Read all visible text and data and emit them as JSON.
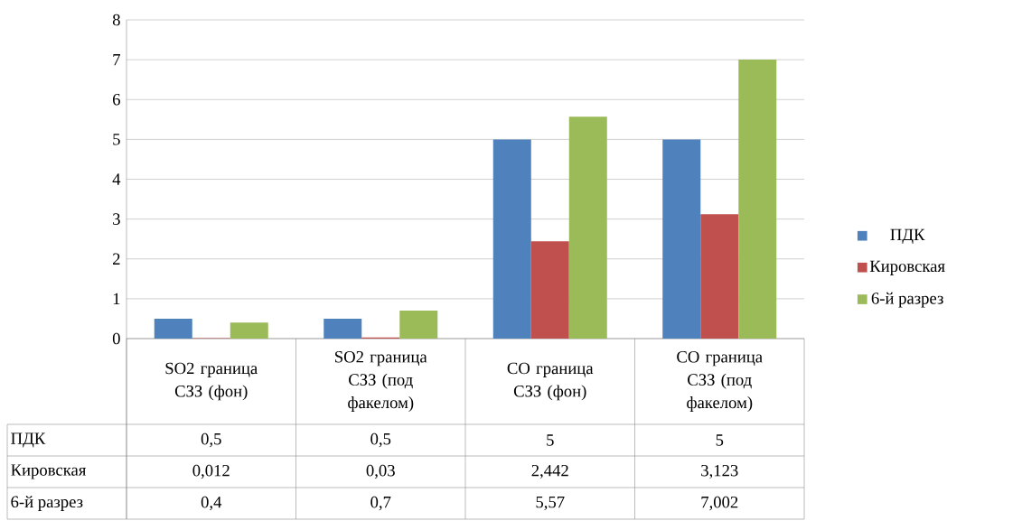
{
  "chart_data": {
    "type": "bar",
    "categories": [
      "SO2 граница СЗЗ (фон)",
      "SO2 граница СЗЗ (под факелом)",
      "CO граница СЗЗ (фон)",
      "CO граница СЗЗ (под факелом)"
    ],
    "series": [
      {
        "name": "ПДК",
        "color": "#4f81bd",
        "values": [
          0.5,
          0.5,
          5,
          5
        ],
        "value_labels": [
          "0,5",
          "0,5",
          "5",
          "5"
        ]
      },
      {
        "name": "Кировская",
        "color": "#c0504d",
        "values": [
          0.012,
          0.03,
          2.442,
          3.123
        ],
        "value_labels": [
          "0,012",
          "0,03",
          "2,442",
          "3,123"
        ]
      },
      {
        "name": "6-й разрез",
        "color": "#9bbb59",
        "values": [
          0.4,
          0.7,
          5.57,
          7.002
        ],
        "value_labels": [
          "0,4",
          "0,7",
          "5,57",
          "7,002"
        ]
      }
    ],
    "ylim": [
      0,
      8
    ],
    "yticks": [
      0,
      1,
      2,
      3,
      4,
      5,
      6,
      7,
      8
    ],
    "grid": "y",
    "legend": "right"
  }
}
